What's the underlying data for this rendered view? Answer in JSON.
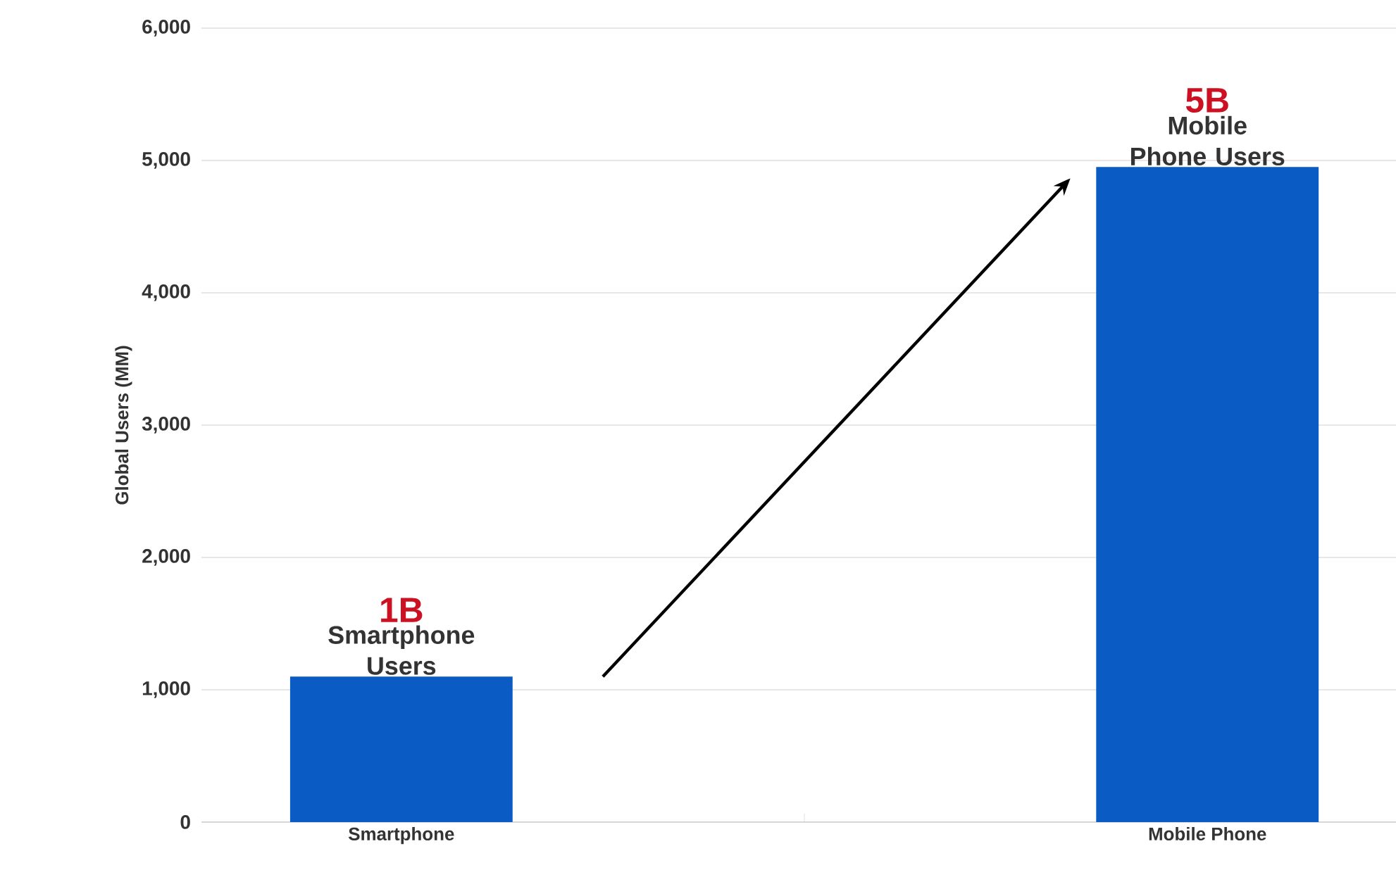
{
  "chart_data": {
    "type": "bar",
    "ylabel": "Global Users (MM)",
    "categories": [
      "Smartphone",
      "Mobile Phone"
    ],
    "values": [
      1100,
      4950
    ],
    "color": "#0a5cc4",
    "ylim": [
      0,
      6000
    ],
    "yticks": [
      {
        "value": 0,
        "label": "0"
      },
      {
        "value": 1000,
        "label": "1,000"
      },
      {
        "value": 2000,
        "label": "2,000"
      },
      {
        "value": 3000,
        "label": "3,000"
      },
      {
        "value": 4000,
        "label": "4,000"
      },
      {
        "value": 5000,
        "label": "5,000"
      },
      {
        "value": 6000,
        "label": "6,000"
      }
    ],
    "grid": "y",
    "annotations": [
      {
        "text": "1B",
        "x": "Smartphone",
        "y": 1100
      },
      {
        "text": "Smartphone Users",
        "x": "Smartphone",
        "y": 1100
      },
      {
        "text": "5B",
        "x": "Mobile Phone",
        "y": 4950
      },
      {
        "text": "Mobile Phone Users",
        "x": "Mobile Phone",
        "y": 4950
      }
    ]
  }
}
